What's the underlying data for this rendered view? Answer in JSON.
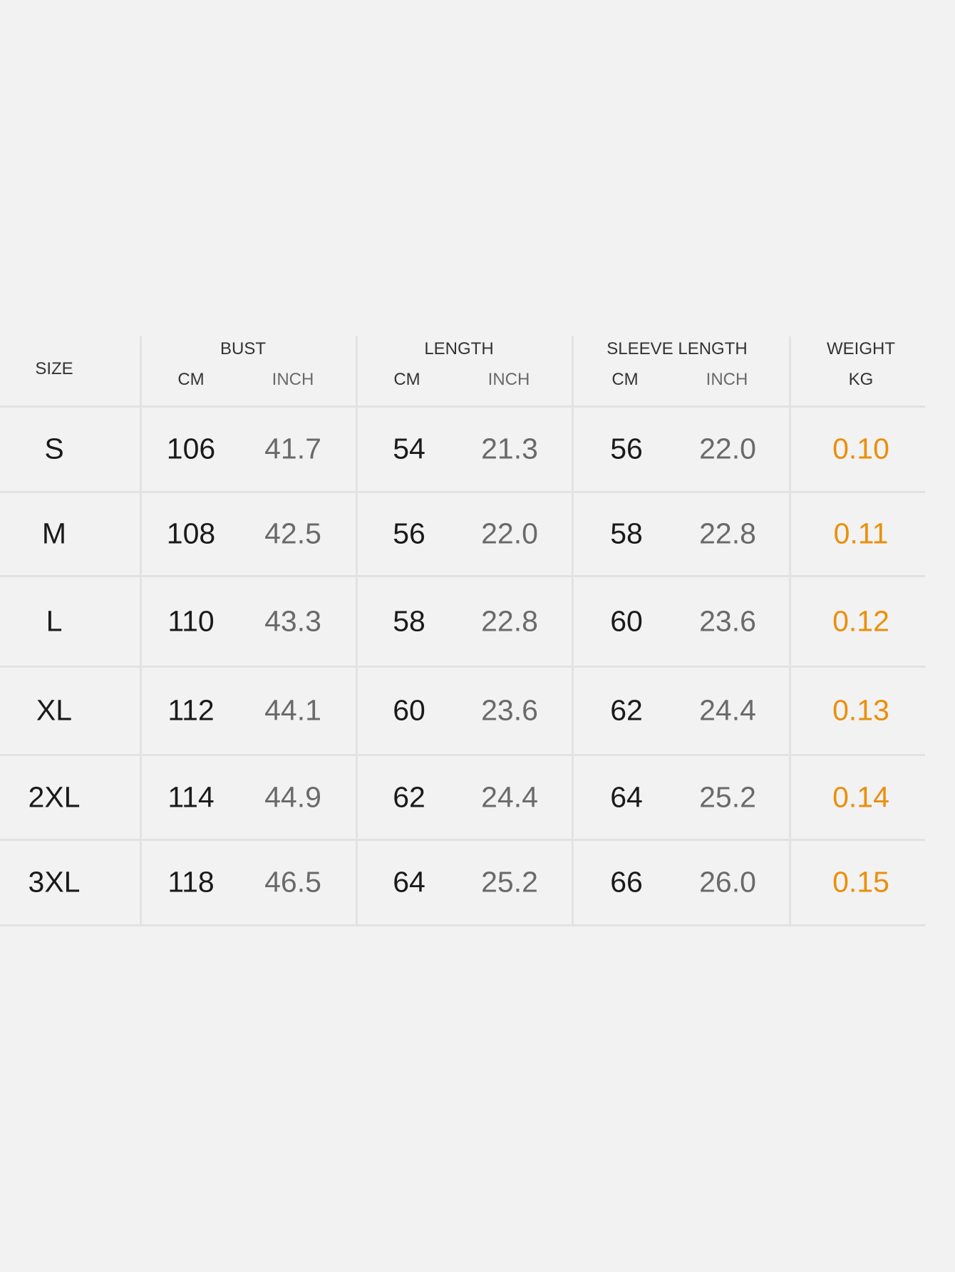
{
  "header": {
    "columns": [
      {
        "label": "SIZE"
      },
      {
        "label": "BUST",
        "units": [
          "CM",
          "INCH"
        ]
      },
      {
        "label": "LENGTH",
        "units": [
          "CM",
          "INCH"
        ]
      },
      {
        "label": "SLEEVE LENGTH",
        "units": [
          "CM",
          "INCH"
        ]
      },
      {
        "label": "WEIGHT",
        "units": [
          "KG"
        ]
      }
    ]
  },
  "table": {
    "rows": [
      [
        "S",
        "106",
        "41.7",
        "54",
        "21.3",
        "56",
        "22.0",
        "0.10"
      ],
      [
        "M",
        "108",
        "42.5",
        "56",
        "22.0",
        "58",
        "22.8",
        "0.11"
      ],
      [
        "L",
        "110",
        "43.3",
        "58",
        "22.8",
        "60",
        "23.6",
        "0.12"
      ],
      [
        "XL",
        "112",
        "44.1",
        "60",
        "23.6",
        "62",
        "24.4",
        "0.13"
      ],
      [
        "2XL",
        "114",
        "44.9",
        "62",
        "24.4",
        "64",
        "25.2",
        "0.14"
      ],
      [
        "3XL",
        "118",
        "46.5",
        "64",
        "25.2",
        "66",
        "26.0",
        "0.15"
      ]
    ]
  }
}
